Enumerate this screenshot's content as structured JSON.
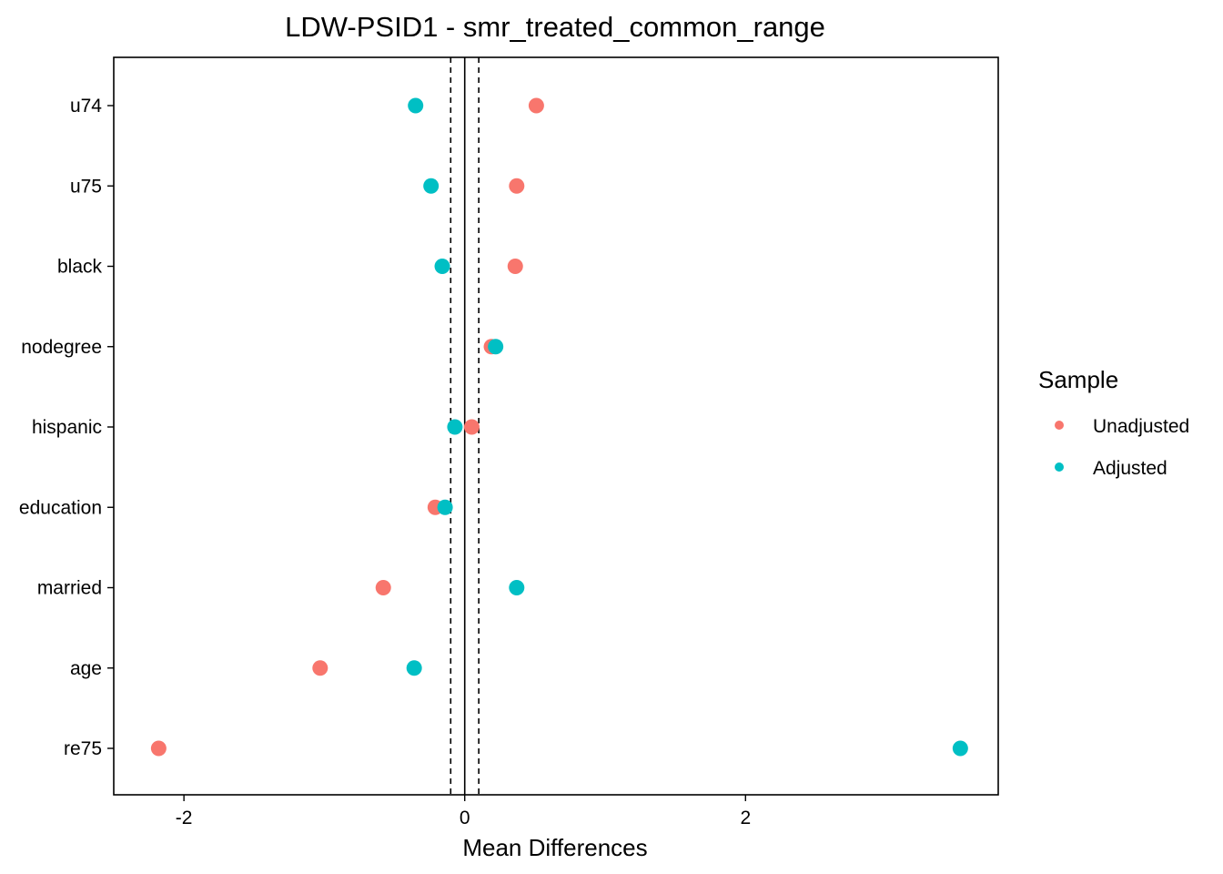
{
  "chart_data": {
    "type": "scatter",
    "title": "LDW-PSID1 - smr_treated_common_range",
    "xlabel": "Mean Differences",
    "ylabel": "",
    "xlim": [
      -2.5,
      3.8
    ],
    "x_ticks": [
      -2,
      0,
      2
    ],
    "categories": [
      "u74",
      "u75",
      "black",
      "nodegree",
      "hispanic",
      "education",
      "married",
      "age",
      "re75"
    ],
    "reference_lines": [
      {
        "x": 0,
        "style": "solid"
      },
      {
        "x": -0.1,
        "style": "dashed"
      },
      {
        "x": 0.1,
        "style": "dashed"
      }
    ],
    "legend": {
      "title": "Sample",
      "placement": "right"
    },
    "series": [
      {
        "name": "Unadjusted",
        "color": "#F8766D",
        "values": [
          0.51,
          0.37,
          0.36,
          0.19,
          0.05,
          -0.21,
          -0.58,
          -1.03,
          -2.18
        ]
      },
      {
        "name": "Adjusted",
        "color": "#00BFC4",
        "values": [
          -0.35,
          -0.24,
          -0.16,
          0.22,
          -0.07,
          -0.14,
          0.37,
          -0.36,
          3.53
        ]
      }
    ],
    "grid": false
  }
}
